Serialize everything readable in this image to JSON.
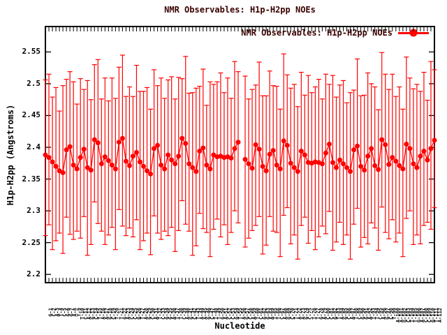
{
  "title": "NMR Observables: H1p-H2pp NOEs",
  "legend": {
    "label": "NMR Observables: H1p-H2pp NOEs"
  },
  "axes": {
    "y_label": "H1p-H2pp (Angstroms)",
    "x_label": "Nucleotide",
    "y_tick_labels": [
      "2.2",
      "2.25",
      "2.3",
      "2.35",
      "2.4",
      "2.45",
      "2.5",
      "2.55"
    ]
  },
  "colors": {
    "series": "#ff0000",
    "heading_text": "#3a0000",
    "axis_text": "#000000",
    "border": "#000000",
    "background": "#ffffff"
  },
  "chart_data": {
    "type": "line",
    "style": "linespoints with yerrorbars",
    "title": "NMR Observables: H1p-H2pp NOEs",
    "xlabel": "Nucleotide",
    "ylabel": "H1p-H2pp (Angstroms)",
    "ylim": [
      2.187,
      2.59
    ],
    "y_ticks": [
      2.2,
      2.25,
      2.3,
      2.35,
      2.4,
      2.45,
      2.5,
      2.55
    ],
    "legend_position": "top-right inside",
    "grid": false,
    "n_points": 112,
    "sequence": "GCATCGGATTCAGCTAAGCTTGACCGTAGCATCGGATTCAGCTAAGCTTGACCGTAGCATCGGATTCAGCTAAGCTTGACCGTAGCATCGGATTCAGCTAAGCTTGACCGTA",
    "values": [
      2.388,
      2.384,
      2.377,
      2.37,
      2.363,
      2.36,
      2.396,
      2.401,
      2.372,
      2.366,
      2.384,
      2.397,
      2.368,
      2.364,
      2.412,
      2.407,
      2.374,
      2.385,
      2.379,
      2.372,
      2.366,
      2.408,
      2.414,
      2.378,
      2.371,
      2.386,
      2.392,
      2.377,
      2.37,
      2.363,
      2.358,
      2.398,
      2.403,
      2.372,
      2.366,
      2.388,
      2.38,
      2.374,
      2.386,
      2.414,
      2.406,
      2.374,
      2.368,
      2.362,
      2.394,
      2.399,
      2.372,
      2.366,
      2.388,
      2.385,
      2.386,
      2.384,
      2.385,
      2.383,
      2.398,
      2.408,
      null,
      2.381,
      2.374,
      2.367,
      2.404,
      2.397,
      2.37,
      2.363,
      2.389,
      2.395,
      2.372,
      2.366,
      2.41,
      2.403,
      2.375,
      2.368,
      2.362,
      2.394,
      2.388,
      2.376,
      2.375,
      2.377,
      2.376,
      2.374,
      2.391,
      2.405,
      2.376,
      2.368,
      2.38,
      2.374,
      2.368,
      2.362,
      2.396,
      2.402,
      2.37,
      2.364,
      2.386,
      2.398,
      2.371,
      2.365,
      2.412,
      2.404,
      2.373,
      2.384,
      2.378,
      2.371,
      2.366,
      2.405,
      2.398,
      2.374,
      2.368,
      2.386,
      2.394,
      2.38,
      2.398,
      2.411
    ],
    "err_up_cycle": [
      0.118,
      0.131,
      0.102,
      0.124,
      0.094,
      0.137,
      0.111
    ],
    "err_dn_cycle": [
      0.127,
      0.106,
      0.138,
      0.117,
      0.098
    ]
  }
}
